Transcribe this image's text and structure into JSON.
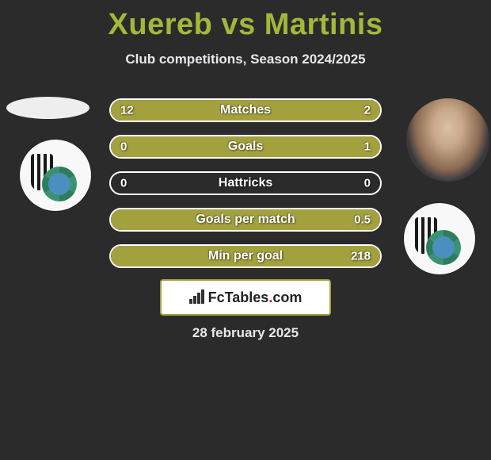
{
  "title": "Xuereb vs Martinis",
  "subtitle": "Club competitions, Season 2024/2025",
  "date": "28 february 2025",
  "footer_brand_left": "FcTables",
  "footer_brand_dot": ".",
  "footer_brand_right": "com",
  "colors": {
    "background": "#2b2b2b",
    "accent": "#a3b73a",
    "bar_fill": "#a3a13e",
    "bar_border": "#ffffff",
    "text_light": "#e8e8e8"
  },
  "rows": [
    {
      "label": "Matches",
      "left_val": "12",
      "right_val": "2",
      "left_pct": 86,
      "right_pct": 14
    },
    {
      "label": "Goals",
      "left_val": "0",
      "right_val": "1",
      "left_pct": 0,
      "right_pct": 100
    },
    {
      "label": "Hattricks",
      "left_val": "0",
      "right_val": "0",
      "left_pct": 0,
      "right_pct": 0
    },
    {
      "label": "Goals per match",
      "left_val": "",
      "right_val": "0.5",
      "left_pct": 0,
      "right_pct": 100
    },
    {
      "label": "Min per goal",
      "left_val": "",
      "right_val": "218",
      "left_pct": 0,
      "right_pct": 100
    }
  ]
}
